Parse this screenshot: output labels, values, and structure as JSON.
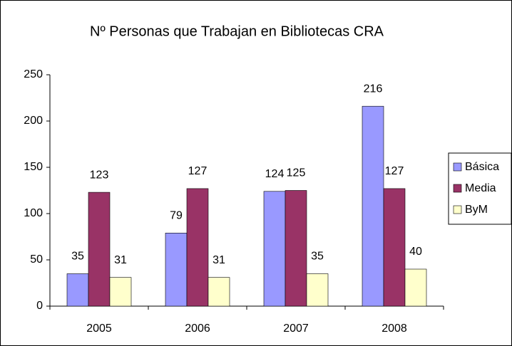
{
  "chart_data": {
    "type": "bar",
    "title": "Nº Personas que Trabajan en Bibliotecas CRA",
    "categories": [
      "2005",
      "2006",
      "2007",
      "2008"
    ],
    "series": [
      {
        "name": "Básica",
        "color": "#9999ff",
        "values": [
          35,
          79,
          124,
          216
        ]
      },
      {
        "name": "Media",
        "color": "#993366",
        "values": [
          123,
          127,
          125,
          127
        ]
      },
      {
        "name": "ByM",
        "color": "#ffffcc",
        "values": [
          31,
          31,
          35,
          40
        ]
      }
    ],
    "ylim": [
      0,
      250
    ],
    "yticks": [
      0,
      50,
      100,
      150,
      200,
      250
    ],
    "legend": "right",
    "grid": false
  }
}
